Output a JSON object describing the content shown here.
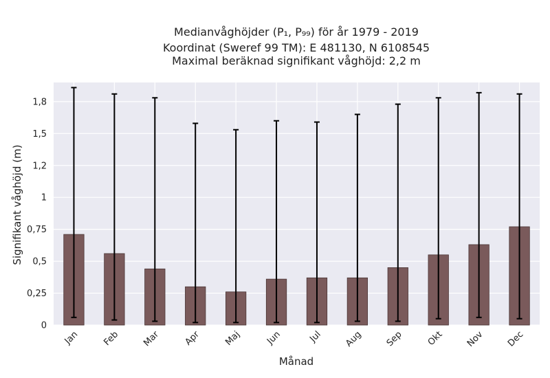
{
  "chart_data": {
    "type": "bar",
    "title_lines": [
      "Medianvåghöjder (P₁, P₉₉) för år 1979 - 2019",
      "Koordinat (Sweref 99 TM): E 481130, N 6108545",
      "Maximal beräknad signifikant våghöjd: 2,2 m"
    ],
    "xlabel": "Månad",
    "ylabel": "Signifikant våghöjd (m)",
    "categories": [
      "Jan",
      "Feb",
      "Mar",
      "Apr",
      "Maj",
      "Jun",
      "Jul",
      "Aug",
      "Sep",
      "Okt",
      "Nov",
      "Dec"
    ],
    "values": [
      0.71,
      0.56,
      0.44,
      0.3,
      0.26,
      0.36,
      0.37,
      0.37,
      0.45,
      0.55,
      0.63,
      0.77
    ],
    "err_low": [
      0.06,
      0.04,
      0.03,
      0.02,
      0.02,
      0.02,
      0.02,
      0.03,
      0.03,
      0.05,
      0.06,
      0.05
    ],
    "err_high": [
      1.86,
      1.81,
      1.78,
      1.58,
      1.53,
      1.6,
      1.59,
      1.65,
      1.73,
      1.78,
      1.82,
      1.81
    ],
    "yticks": [
      0,
      0.25,
      0.5,
      0.75,
      1,
      1.25,
      1.5,
      1.75
    ],
    "ytick_labels": [
      "0",
      "0,25",
      "0,5",
      "0,75",
      "1",
      "1,2",
      "1,5",
      "1,8"
    ],
    "ylim": [
      0,
      1.9
    ],
    "grid": true,
    "colors": {
      "bar_fill": "#7a5a5b",
      "bar_edge": "#4a3636",
      "plot_bg": "#eaeaf2",
      "error_bar": "#000000"
    }
  }
}
